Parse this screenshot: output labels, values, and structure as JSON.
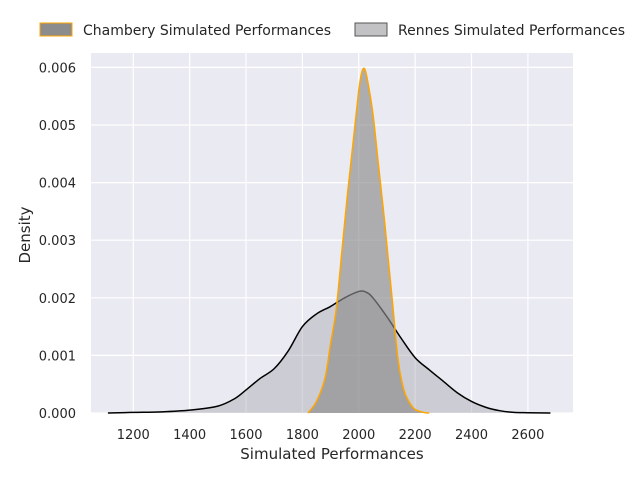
{
  "chart_data": {
    "type": "area",
    "xlabel": "Simulated Performances",
    "ylabel": "Density",
    "xlim": [
      1050,
      2760
    ],
    "ylim": [
      0,
      0.00625
    ],
    "x_ticks": [
      1200,
      1400,
      1600,
      1800,
      2000,
      2200,
      2400,
      2600
    ],
    "y_ticks": [
      0.0,
      0.001,
      0.002,
      0.003,
      0.004,
      0.005,
      0.006
    ],
    "y_tick_labels": [
      "0.000",
      "0.001",
      "0.002",
      "0.003",
      "0.004",
      "0.005",
      "0.006"
    ],
    "grid": true,
    "legend_position": "top",
    "series": [
      {
        "name": "Rennes Simulated Performances",
        "fill": "#a9a9b2",
        "edge": "#000000",
        "x": [
          1110,
          1200,
          1300,
          1400,
          1500,
          1560,
          1600,
          1650,
          1700,
          1750,
          1800,
          1850,
          1900,
          1950,
          2000,
          2025,
          2050,
          2100,
          2150,
          2200,
          2250,
          2300,
          2350,
          2400,
          2450,
          2500,
          2550,
          2600,
          2680
        ],
        "y": [
          0.0,
          1e-05,
          2e-05,
          5e-05,
          0.00012,
          0.00025,
          0.0004,
          0.0006,
          0.00077,
          0.00108,
          0.0015,
          0.00172,
          0.00185,
          0.002,
          0.00211,
          0.0021,
          0.002,
          0.00167,
          0.0013,
          0.00096,
          0.00075,
          0.00055,
          0.00035,
          0.0002,
          0.0001,
          4e-05,
          1e-05,
          5e-06,
          0.0
        ]
      },
      {
        "name": "Chambery Simulated Performances",
        "fill": "#8c8c8c",
        "edge": "#ffa500",
        "x": [
          1820,
          1850,
          1880,
          1900,
          1920,
          1940,
          1960,
          1980,
          2000,
          2010,
          2020,
          2030,
          2050,
          2070,
          2090,
          2100,
          2120,
          2140,
          2160,
          2180,
          2200,
          2230,
          2250
        ],
        "y": [
          0.0,
          0.0002,
          0.0006,
          0.0012,
          0.0018,
          0.0028,
          0.0038,
          0.0047,
          0.0056,
          0.0059,
          0.00598,
          0.0058,
          0.0052,
          0.0043,
          0.0034,
          0.0029,
          0.0019,
          0.0009,
          0.0004,
          0.00018,
          6e-05,
          1e-05,
          0.0
        ]
      }
    ]
  }
}
